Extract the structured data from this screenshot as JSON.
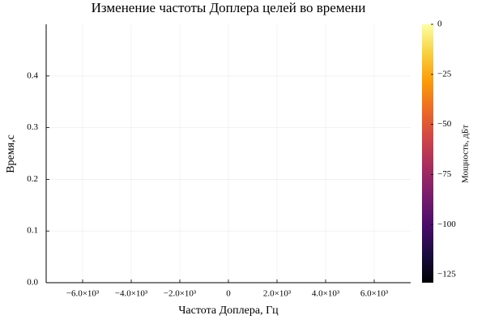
{
  "chart_data": {
    "type": "heatmap",
    "title": "Изменение частоты Доплера целей во времени",
    "xlabel": "Частота Доплера, Гц",
    "ylabel": "Время,с",
    "colorbar_label": "Мощность, дБт",
    "colormap": "inferno",
    "grid": true,
    "xlim": [
      -7500,
      7500
    ],
    "xticks": [
      {
        "value": -6000,
        "label": "−6.0×10³"
      },
      {
        "value": -4000,
        "label": "−4.0×10³"
      },
      {
        "value": -2000,
        "label": "−2.0×10³"
      },
      0,
      {
        "value": 2000,
        "label": "2.0×10³"
      },
      {
        "value": 4000,
        "label": "4.0×10³"
      },
      {
        "value": 6000,
        "label": "6.0×10³"
      }
    ],
    "ylim": [
      0,
      0.5
    ],
    "yticks": [
      {
        "value": 0,
        "label": "0.0"
      },
      0.1,
      0.2,
      0.3,
      0.4
    ],
    "clim": [
      -129,
      0
    ],
    "cticks": [
      0,
      {
        "value": -25,
        "label": "−25"
      },
      {
        "value": -50,
        "label": "−50"
      },
      {
        "value": -75,
        "label": "−75"
      },
      {
        "value": -100,
        "label": "−100"
      },
      {
        "value": -125,
        "label": "−125"
      }
    ]
  }
}
